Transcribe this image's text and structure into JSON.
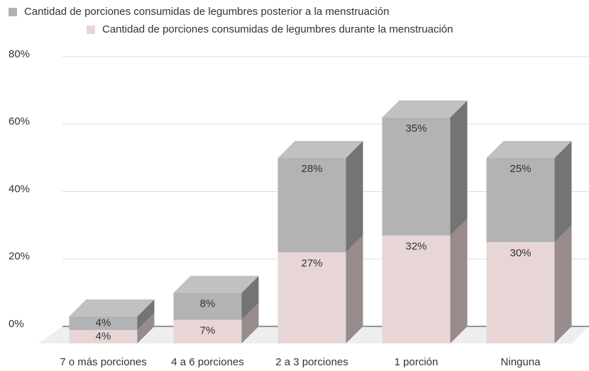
{
  "chart_data": {
    "type": "bar",
    "stacked": true,
    "categories": [
      "7 o más porciones",
      "4 a 6 porciones",
      "2 a 3 porciones",
      "1 porción",
      "Ninguna"
    ],
    "series": [
      {
        "name": "Cantidad de porciones consumidas de legumbres posterior a la menstruación",
        "color": "#b3b3b3",
        "values": [
          4,
          8,
          28,
          35,
          25
        ],
        "value_labels": [
          "4%",
          "8%",
          "28%",
          "35%",
          "25%"
        ]
      },
      {
        "name": "Cantidad de porciones consumidas de legumbres durante la menstruación",
        "color": "#e8d6d6",
        "values": [
          4,
          7,
          27,
          32,
          30
        ],
        "value_labels": [
          "4%",
          "7%",
          "27%",
          "32%",
          "30%"
        ]
      }
    ],
    "ylim": [
      0,
      80
    ],
    "yticks": [
      {
        "value": 0,
        "label": "0%"
      },
      {
        "value": 20,
        "label": "20%"
      },
      {
        "value": 40,
        "label": "40%"
      },
      {
        "value": 60,
        "label": "60%"
      },
      {
        "value": 80,
        "label": "80%"
      }
    ],
    "grid": true
  }
}
